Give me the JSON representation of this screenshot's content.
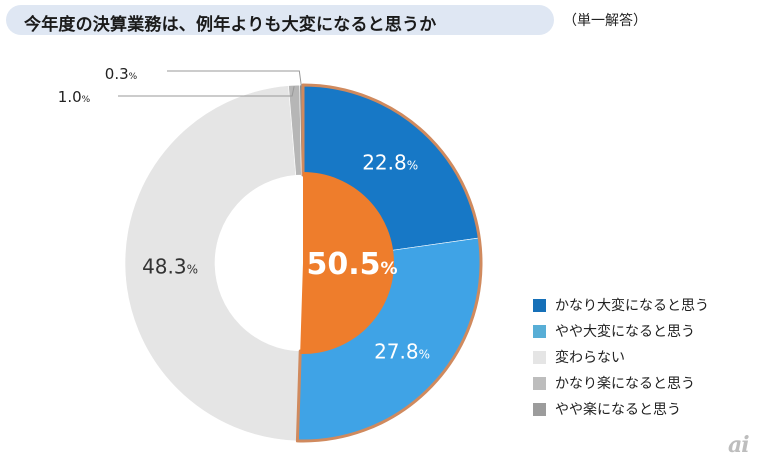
{
  "title": "今年度の決算業務は、例年よりも大変になると思うか",
  "subtitle": "（単一解答）",
  "logo_text": "ai",
  "chart_data": {
    "type": "pie",
    "style": "donut",
    "categories": [
      "かなり大変になると思う",
      "やや大変になると思う",
      "変わらない",
      "かなり楽になると思う",
      "やや楽になると思う"
    ],
    "values": [
      22.8,
      27.8,
      48.3,
      1.0,
      0.3
    ],
    "value_labels": [
      "22.8",
      "27.8",
      "48.3",
      "1.0",
      "0.3"
    ],
    "percent_sign": "%",
    "colors": [
      "#1778c6",
      "#3fa3e6",
      "#e5e5e5",
      "#b6b6b6",
      "#8c8c8c"
    ],
    "legend_colors": [
      "#1670b8",
      "#58aed6",
      "#e5e5e5",
      "#bdbdbd",
      "#9c9c9c"
    ],
    "center_total": "50.5",
    "center_color": "#ee7d2c",
    "highlight_border_color": "#d08a5e",
    "legend_position": "right"
  }
}
